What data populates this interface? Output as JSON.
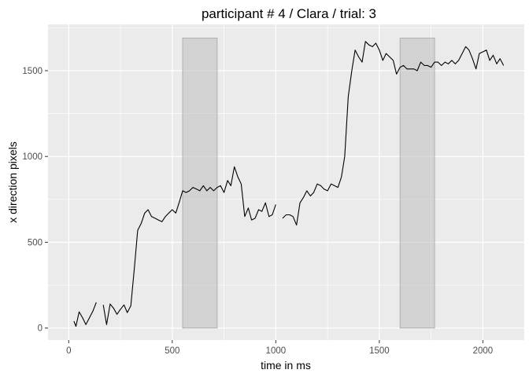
{
  "chart_data": {
    "type": "line",
    "title": "participant # 4  /  Clara / trial: 3",
    "xlabel": "time in ms",
    "ylabel": "x direction pixels",
    "xlim": [
      -100,
      2200
    ],
    "ylim": [
      -70,
      1770
    ],
    "xticks": [
      0,
      500,
      1000,
      1500,
      2000
    ],
    "yticks": [
      0,
      500,
      1000,
      1500
    ],
    "xtick_labels": [
      "0",
      "500",
      "1000",
      "1500",
      "2000"
    ],
    "ytick_labels": [
      "0",
      "500",
      "1000",
      "1500"
    ],
    "grid": true,
    "legend": "none",
    "colors": {
      "panel": "#ebebeb",
      "grid_major": "#ffffff",
      "line": "#000000",
      "shade": "#bdbdbd",
      "shade_border": "#a6a6a6"
    },
    "shaded_regions": [
      {
        "x0": 550,
        "x1": 717,
        "y0": 0,
        "y1": 1690
      },
      {
        "x0": 1600,
        "x1": 1767,
        "y0": 0,
        "y1": 1690
      }
    ],
    "series": [
      {
        "segments": [
          [
            [
              25,
              40
            ],
            [
              35,
              10
            ],
            [
              50,
              95
            ],
            [
              67,
              60
            ],
            [
              83,
              20
            ],
            [
              100,
              60
            ],
            [
              117,
              100
            ],
            [
              133,
              150
            ]
          ],
          [
            [
              167,
              135
            ],
            [
              183,
              20
            ],
            [
              200,
              140
            ],
            [
              217,
              115
            ],
            [
              233,
              80
            ],
            [
              250,
              110
            ],
            [
              267,
              135
            ],
            [
              283,
              90
            ],
            [
              300,
              130
            ],
            [
              317,
              350
            ],
            [
              333,
              570
            ],
            [
              350,
              610
            ],
            [
              367,
              670
            ],
            [
              383,
              690
            ],
            [
              400,
              650
            ],
            [
              417,
              640
            ],
            [
              433,
              630
            ],
            [
              450,
              620
            ],
            [
              467,
              650
            ],
            [
              483,
              670
            ],
            [
              500,
              690
            ],
            [
              517,
              670
            ],
            [
              533,
              730
            ],
            [
              550,
              800
            ],
            [
              567,
              790
            ],
            [
              583,
              800
            ],
            [
              600,
              820
            ],
            [
              617,
              810
            ],
            [
              633,
              800
            ],
            [
              650,
              830
            ],
            [
              667,
              800
            ],
            [
              683,
              820
            ],
            [
              700,
              800
            ],
            [
              717,
              820
            ],
            [
              733,
              830
            ],
            [
              750,
              790
            ],
            [
              767,
              860
            ],
            [
              783,
              830
            ],
            [
              800,
              940
            ],
            [
              817,
              880
            ],
            [
              833,
              840
            ],
            [
              850,
              650
            ],
            [
              867,
              700
            ],
            [
              883,
              630
            ],
            [
              900,
              640
            ],
            [
              917,
              690
            ],
            [
              933,
              680
            ],
            [
              950,
              730
            ],
            [
              967,
              650
            ],
            [
              983,
              660
            ],
            [
              1000,
              720
            ]
          ],
          [
            [
              1033,
              640
            ],
            [
              1050,
              660
            ],
            [
              1067,
              660
            ],
            [
              1083,
              650
            ],
            [
              1100,
              600
            ],
            [
              1117,
              730
            ],
            [
              1133,
              760
            ],
            [
              1150,
              800
            ],
            [
              1167,
              770
            ],
            [
              1183,
              790
            ],
            [
              1200,
              840
            ],
            [
              1217,
              830
            ],
            [
              1233,
              810
            ],
            [
              1250,
              800
            ],
            [
              1267,
              840
            ],
            [
              1283,
              830
            ],
            [
              1300,
              820
            ],
            [
              1317,
              880
            ],
            [
              1333,
              1000
            ],
            [
              1350,
              1350
            ],
            [
              1367,
              1500
            ],
            [
              1383,
              1620
            ],
            [
              1400,
              1580
            ],
            [
              1417,
              1550
            ],
            [
              1433,
              1670
            ],
            [
              1450,
              1650
            ],
            [
              1467,
              1640
            ],
            [
              1483,
              1660
            ],
            [
              1500,
              1620
            ],
            [
              1517,
              1560
            ],
            [
              1533,
              1600
            ],
            [
              1550,
              1580
            ],
            [
              1567,
              1560
            ],
            [
              1583,
              1480
            ],
            [
              1600,
              1520
            ],
            [
              1617,
              1530
            ],
            [
              1633,
              1510
            ],
            [
              1650,
              1510
            ],
            [
              1667,
              1510
            ],
            [
              1683,
              1500
            ],
            [
              1700,
              1550
            ],
            [
              1717,
              1530
            ],
            [
              1733,
              1530
            ],
            [
              1750,
              1520
            ],
            [
              1767,
              1550
            ],
            [
              1783,
              1550
            ],
            [
              1800,
              1530
            ],
            [
              1817,
              1550
            ],
            [
              1833,
              1540
            ],
            [
              1850,
              1560
            ],
            [
              1867,
              1540
            ],
            [
              1883,
              1560
            ],
            [
              1900,
              1600
            ],
            [
              1917,
              1640
            ],
            [
              1933,
              1620
            ],
            [
              1950,
              1570
            ],
            [
              1967,
              1510
            ],
            [
              1983,
              1600
            ],
            [
              2000,
              1610
            ],
            [
              2017,
              1620
            ],
            [
              2033,
              1560
            ],
            [
              2050,
              1590
            ],
            [
              2067,
              1540
            ],
            [
              2083,
              1570
            ],
            [
              2100,
              1530
            ]
          ]
        ]
      }
    ]
  }
}
